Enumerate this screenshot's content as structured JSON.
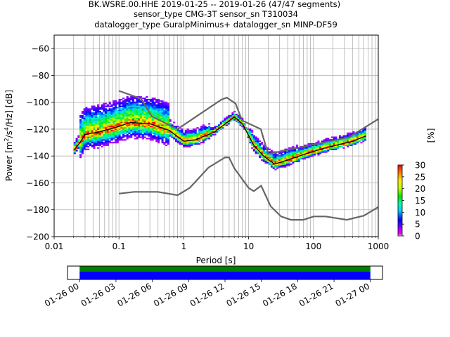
{
  "chart_data": {
    "type": "heatmap",
    "title_lines": [
      "BK.WSRE.00.HHE   2019-01-25 -- 2019-01-26  (47/47 segments)",
      "sensor_type CMG-3T sensor_sn T310034",
      "datalogger_type GuralpMinimus+ datalogger_sn MINP-DF59"
    ],
    "xlabel": "Period [s]",
    "ylabel": "Power [m²/s⁴/Hz] [dB]",
    "ylabel_parts": {
      "a": "Power [m",
      "b": "2",
      "c": "/s",
      "d": "4",
      "e": "/Hz] [dB]"
    },
    "x_scale": "log",
    "xlim": [
      0.01,
      1000
    ],
    "ylim": [
      -200,
      -50
    ],
    "x_ticks": [
      {
        "value": 0.01,
        "label": "0.01"
      },
      {
        "value": 0.1,
        "label": "0.1"
      },
      {
        "value": 1,
        "label": "1"
      },
      {
        "value": 10,
        "label": "10"
      },
      {
        "value": 100,
        "label": "100"
      },
      {
        "value": 1000,
        "label": "1000"
      }
    ],
    "y_ticks": [
      {
        "value": -60,
        "label": "−60"
      },
      {
        "value": -80,
        "label": "−80"
      },
      {
        "value": -100,
        "label": "−100"
      },
      {
        "value": -120,
        "label": "−120"
      },
      {
        "value": -140,
        "label": "−140"
      },
      {
        "value": -160,
        "label": "−160"
      },
      {
        "value": -180,
        "label": "−180"
      },
      {
        "value": -200,
        "label": "−200"
      }
    ],
    "grid": true,
    "colorbar": {
      "label": "[%]",
      "range": [
        0,
        30
      ],
      "ticks": [
        {
          "value": 0,
          "label": "0"
        },
        {
          "value": 5,
          "label": "5"
        },
        {
          "value": 10,
          "label": "10"
        },
        {
          "value": 15,
          "label": "15"
        },
        {
          "value": 20,
          "label": "20"
        },
        {
          "value": 25,
          "label": "25"
        },
        {
          "value": 30,
          "label": "30"
        }
      ]
    },
    "nhnm": {
      "periods": [
        0.1,
        0.22,
        0.32,
        0.8,
        3.8,
        4.6,
        6.3,
        7.9,
        15.4,
        20,
        354.8,
        1000
      ],
      "power": [
        -91.5,
        -97.4,
        -110.5,
        -120,
        -98,
        -96.5,
        -101,
        -113.5,
        -120,
        -138.5,
        -126,
        -112.5
      ]
    },
    "nlnm": {
      "periods": [
        0.1,
        0.17,
        0.4,
        0.8,
        1.24,
        2.4,
        4.3,
        5,
        6,
        10,
        12,
        15.6,
        21.9,
        31.6,
        45,
        70,
        101,
        154,
        328,
        600,
        1000
      ],
      "power": [
        -168,
        -166.7,
        -166.7,
        -169.2,
        -163.7,
        -148.6,
        -141.1,
        -141.1,
        -149,
        -163.8,
        -166.2,
        -162.1,
        -177.5,
        -185,
        -187.5,
        -187.5,
        -185,
        -185,
        -187.5,
        -184.4,
        -178
      ]
    },
    "mode": {
      "periods": [
        0.02,
        0.025,
        0.03,
        0.05,
        0.1,
        0.15,
        0.3,
        0.6,
        1,
        1.5,
        3,
        6,
        8,
        12,
        17,
        25,
        40,
        80,
        150,
        400,
        650
      ],
      "power": [
        -136,
        -130,
        -124,
        -122,
        -118,
        -115,
        -116,
        -121,
        -129,
        -128,
        -122,
        -111,
        -116,
        -132,
        -140,
        -146,
        -143,
        -138,
        -134,
        -129,
        -125
      ]
    },
    "time_axis": {
      "tick_labels": [
        "01-26 00",
        "01-26 03",
        "01-26 06",
        "01-26 09",
        "01-26 12",
        "01-26 15",
        "01-26 18",
        "01-26 21",
        "01-27 00"
      ],
      "range_hours": [
        -1,
        25
      ],
      "data_hours": [
        0,
        24
      ]
    }
  }
}
